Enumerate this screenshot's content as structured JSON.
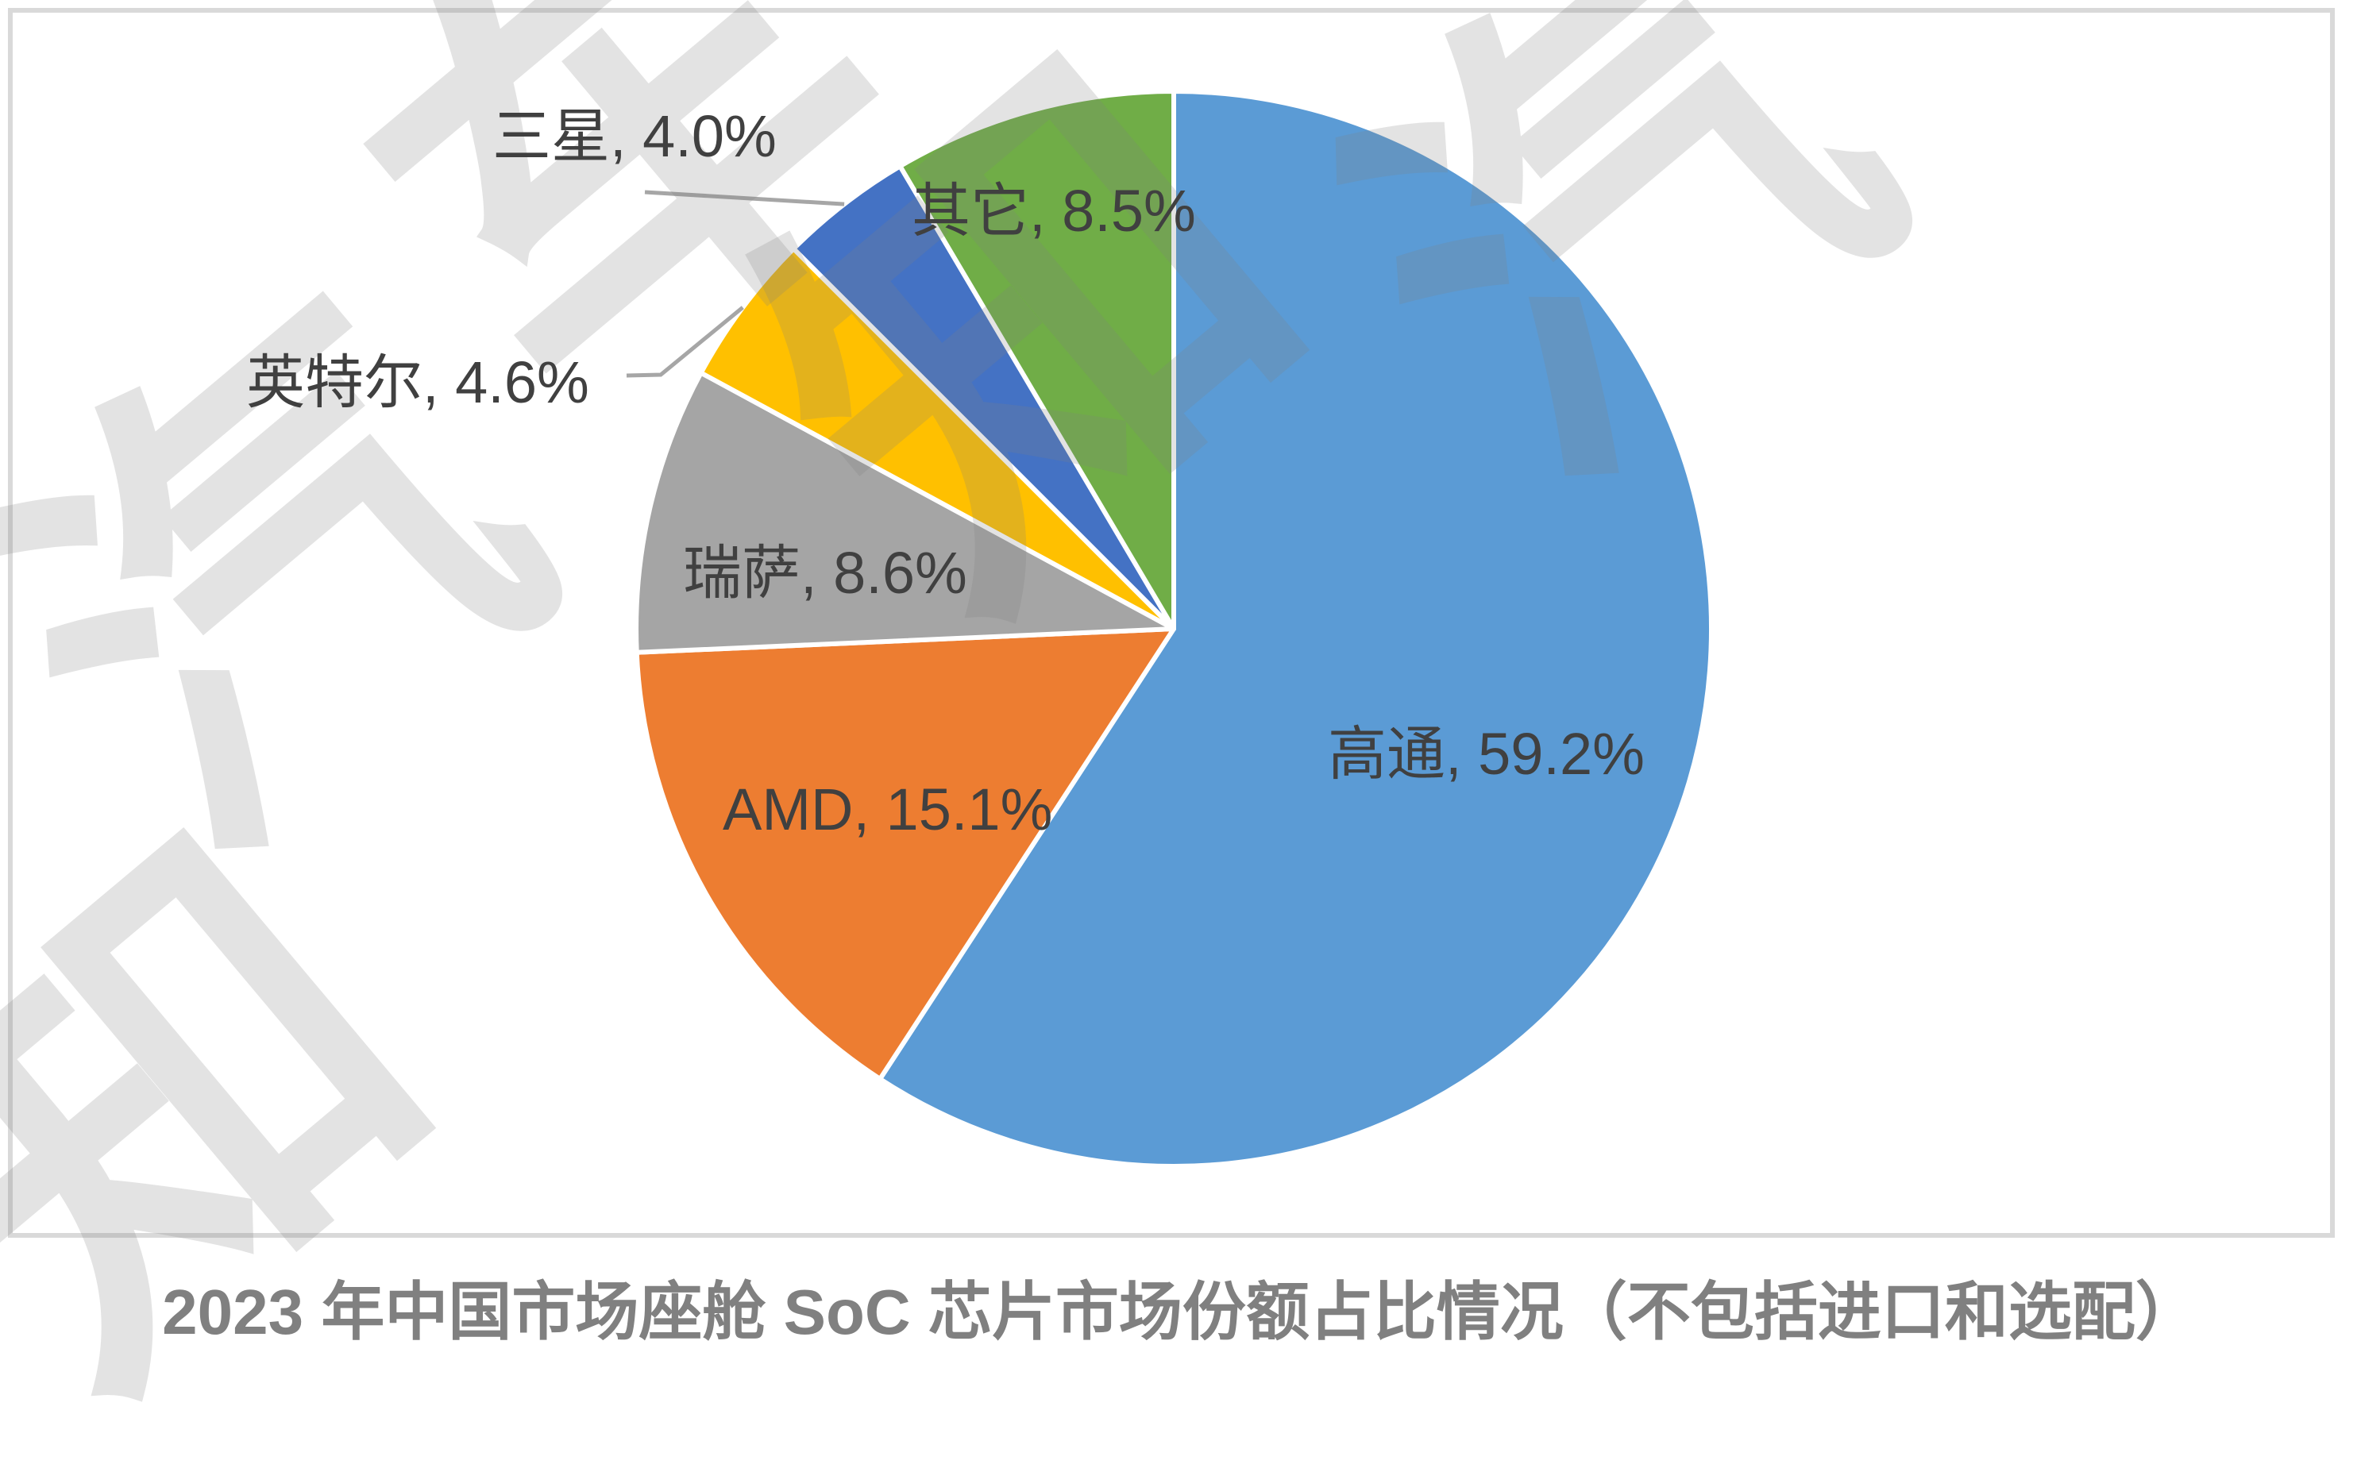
{
  "chart_data": {
    "type": "pie",
    "title": "2023 年中国市场座舱 SoC 芯片市场份额占比情况（不包括进口和选配）",
    "unit": "%",
    "direction": "clockwise",
    "start_angle_deg": 0,
    "legend": "none",
    "label_color": "#404040",
    "leader_line_color": "#A6A6A6",
    "slice_border_color": "#FFFFFF",
    "slices": [
      {
        "key": "qualcomm",
        "label": "高通",
        "value": 59.2,
        "display": "高通, 59.2%",
        "color": "#5B9BD5"
      },
      {
        "key": "amd",
        "label": "AMD",
        "value": 15.1,
        "display": "AMD, 15.1%",
        "color": "#ED7D31"
      },
      {
        "key": "renesas",
        "label": "瑞萨",
        "value": 8.6,
        "display": "瑞萨, 8.6%",
        "color": "#A5A5A5"
      },
      {
        "key": "intel",
        "label": "英特尔",
        "value": 4.6,
        "display": "英特尔, 4.6%",
        "color": "#FFC000"
      },
      {
        "key": "samsung",
        "label": "三星",
        "value": 4.0,
        "display": "三星, 4.0%",
        "color": "#4472C4"
      },
      {
        "key": "others",
        "label": "其它",
        "value": 8.5,
        "display": "其它, 8.5%",
        "color": "#70AD47"
      }
    ]
  },
  "frame": {
    "border_color": "#D9D9D9"
  },
  "watermark": {
    "characters": [
      "知",
      "汽",
      "车"
    ],
    "color_rgba": "rgba(128,128,128,0.22)"
  }
}
